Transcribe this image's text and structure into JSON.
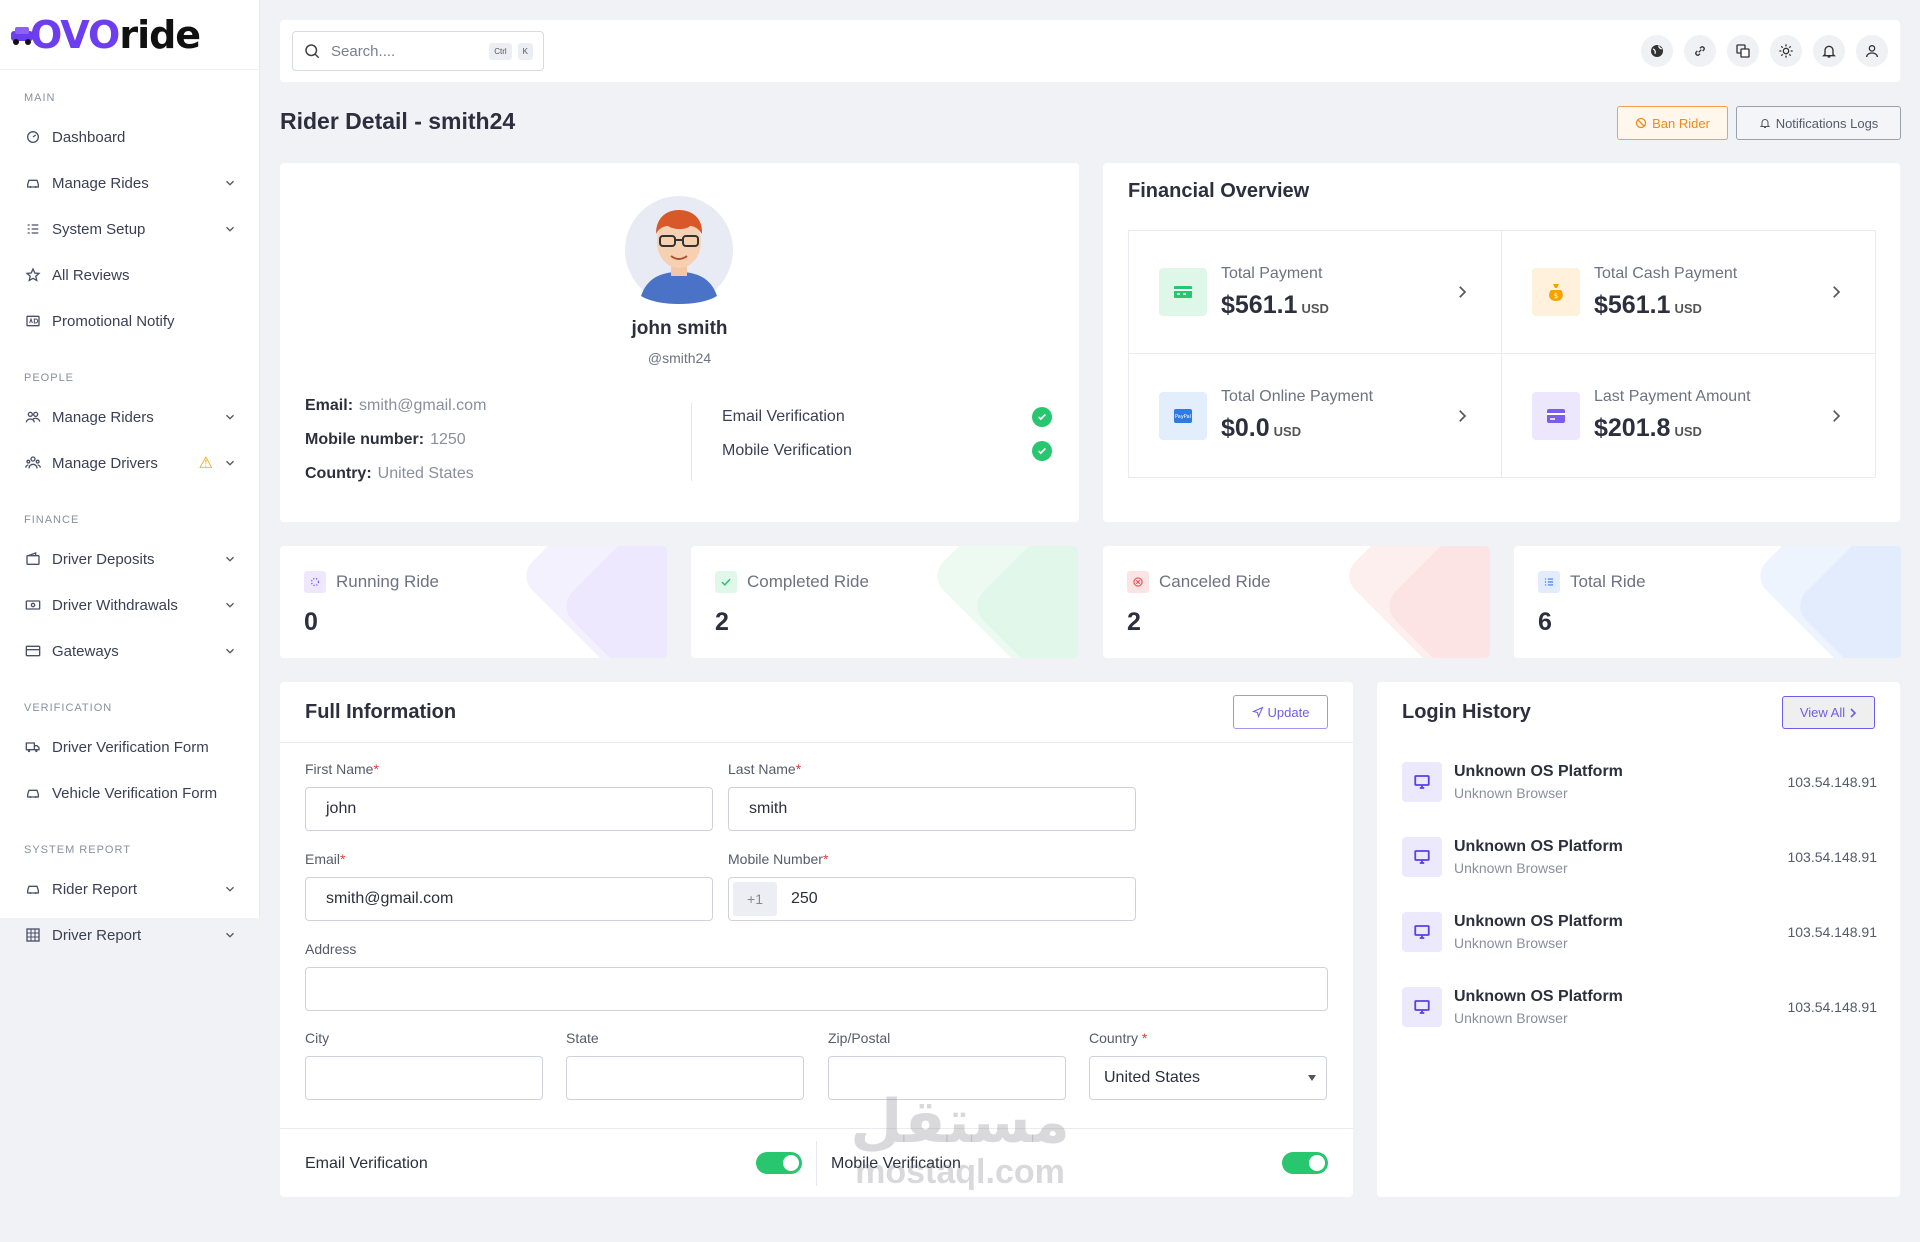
{
  "brand": {
    "logo_left": "OVO",
    "logo_right": "ride"
  },
  "sidebar": {
    "sections": [
      {
        "title": "MAIN",
        "items": [
          {
            "label": "Dashboard",
            "icon": "dashboard-icon",
            "chevron": false
          },
          {
            "label": "Manage Rides",
            "icon": "car-icon",
            "chevron": true
          },
          {
            "label": "System Setup",
            "icon": "list-settings-icon",
            "chevron": true
          },
          {
            "label": "All Reviews",
            "icon": "star-icon",
            "chevron": false
          },
          {
            "label": "Promotional Notify",
            "icon": "ad-icon",
            "chevron": false
          }
        ]
      },
      {
        "title": "PEOPLE",
        "items": [
          {
            "label": "Manage Riders",
            "icon": "users-icon",
            "chevron": true
          },
          {
            "label": "Manage Drivers",
            "icon": "drivers-icon",
            "chevron": true,
            "warning": true
          }
        ]
      },
      {
        "title": "FINANCE",
        "items": [
          {
            "label": "Driver Deposits",
            "icon": "wallet-icon",
            "chevron": true
          },
          {
            "label": "Driver Withdrawals",
            "icon": "money-icon",
            "chevron": true
          },
          {
            "label": "Gateways",
            "icon": "card-icon",
            "chevron": true
          }
        ]
      },
      {
        "title": "VERIFICATION",
        "items": [
          {
            "label": "Driver Verification Form",
            "icon": "truck-icon",
            "chevron": false
          },
          {
            "label": "Vehicle Verification Form",
            "icon": "car-icon",
            "chevron": false
          }
        ]
      },
      {
        "title": "SYSTEM REPORT",
        "items": [
          {
            "label": "Rider Report",
            "icon": "car-icon",
            "chevron": true
          },
          {
            "label": "Driver Report",
            "icon": "table-icon",
            "chevron": true
          }
        ]
      }
    ]
  },
  "topbar": {
    "search_placeholder": "Search....",
    "kbd_ctrl": "Ctrl",
    "kbd_k": "K",
    "icons": [
      "globe-icon",
      "link-icon",
      "translate-icon",
      "sun-icon",
      "bell-icon",
      "user-icon"
    ]
  },
  "page": {
    "title": "Rider Detail - smith24",
    "ban_label": "Ban Rider",
    "logs_label": "Notifications Logs"
  },
  "profile": {
    "name": "john smith",
    "username": "@smith24",
    "email_key": "Email:",
    "email_val": "smith@gmail.com",
    "mobile_key": "Mobile number:",
    "mobile_val": "1250",
    "country_key": "Country:",
    "country_val": "United States",
    "email_verification": "Email Verification",
    "mobile_verification": "Mobile Verification"
  },
  "financial": {
    "title": "Financial Overview",
    "items": [
      {
        "label": "Total Payment",
        "value": "$561.1",
        "currency": "USD",
        "icon": "cash-icon",
        "bg": "#dff7e8",
        "color": "#28c76f"
      },
      {
        "label": "Total Cash Payment",
        "value": "$561.1",
        "currency": "USD",
        "icon": "money-bag-icon",
        "bg": "#fff1dc",
        "color": "#f5a300"
      },
      {
        "label": "Total Online Payment",
        "value": "$0.0",
        "currency": "USD",
        "icon": "paypal-icon",
        "bg": "#e3eefc",
        "color": "#2f7be5"
      },
      {
        "label": "Last Payment Amount",
        "value": "$201.8",
        "currency": "USD",
        "icon": "credit-card-icon",
        "bg": "#ece7fd",
        "color": "#7b5cf0"
      }
    ]
  },
  "stats": [
    {
      "label": "Running Ride",
      "value": "0",
      "color": "#7b5cf0",
      "tint": "#ede8fd"
    },
    {
      "label": "Completed Ride",
      "value": "2",
      "color": "#28c76f",
      "tint": "#e1f7ea"
    },
    {
      "label": "Canceled Ride",
      "value": "2",
      "color": "#ea5455",
      "tint": "#fde4e4"
    },
    {
      "label": "Total Ride",
      "value": "6",
      "color": "#3d7be8",
      "tint": "#e2ecfc"
    }
  ],
  "full_info": {
    "title": "Full Information",
    "update_label": "Update",
    "first_name_label": "First Name",
    "first_name": "john",
    "last_name_label": "Last Name",
    "last_name": "smith",
    "email_label": "Email",
    "email": "smith@gmail.com",
    "mobile_label": "Mobile Number",
    "mobile_prefix": "+1",
    "mobile": "250",
    "address_label": "Address",
    "address": "",
    "city_label": "City",
    "city": "",
    "state_label": "State",
    "state": "",
    "zip_label": "Zip/Postal",
    "zip": "",
    "country_label": "Country",
    "country": "United States",
    "email_verification_label": "Email Verification",
    "email_verification_on": true,
    "mobile_verification_label": "Mobile Verification",
    "mobile_verification_on": true
  },
  "login_history": {
    "title": "Login History",
    "view_all": "View All",
    "items": [
      {
        "os": "Unknown OS Platform",
        "browser": "Unknown Browser",
        "ip": "103.54.148.91"
      },
      {
        "os": "Unknown OS Platform",
        "browser": "Unknown Browser",
        "ip": "103.54.148.91"
      },
      {
        "os": "Unknown OS Platform",
        "browser": "Unknown Browser",
        "ip": "103.54.148.91"
      },
      {
        "os": "Unknown OS Platform",
        "browser": "Unknown Browser",
        "ip": "103.54.148.91"
      }
    ]
  },
  "watermark": {
    "arabic": "مستقل",
    "latin": "mostaql.com"
  }
}
